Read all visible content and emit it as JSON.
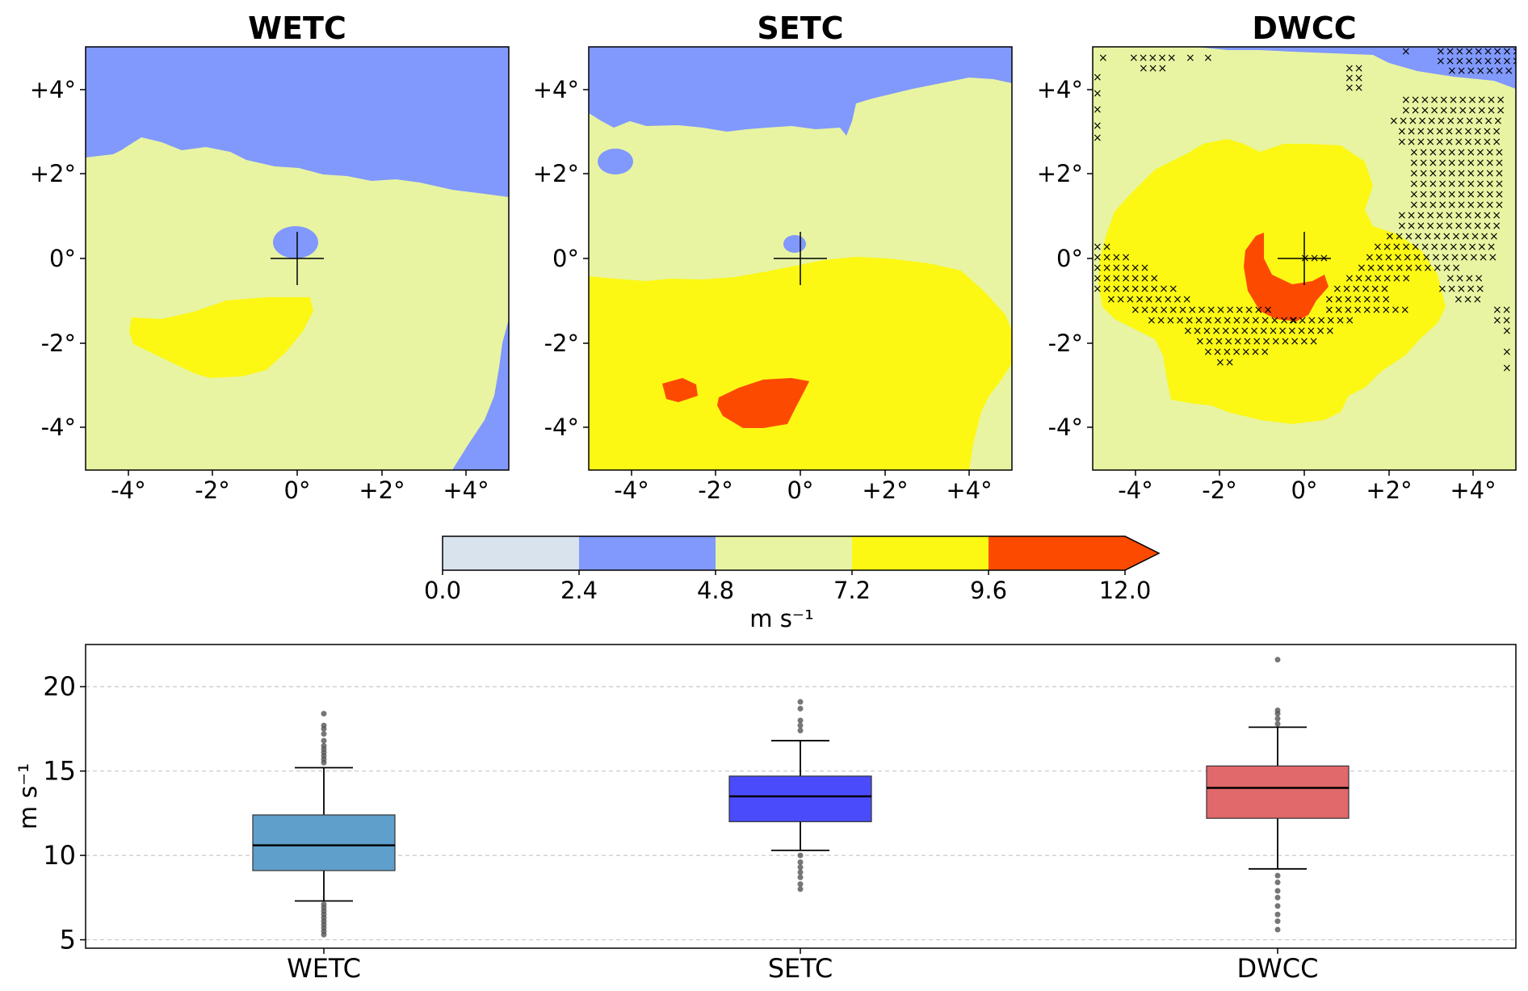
{
  "chart_data": [
    {
      "type": "heatmap",
      "panel_titles": [
        "WETC",
        "SETC",
        "DWCC"
      ],
      "x_ticks": [
        "-4°",
        "-2°",
        "0°",
        "+2°",
        "+4°"
      ],
      "y_ticks": [
        "+4°",
        "+2°",
        "0°",
        "-2°",
        "-4°"
      ],
      "x_range_deg": [
        -5,
        5
      ],
      "y_range_deg": [
        -5,
        5
      ],
      "marker": "cross at 0°, 0° (storm centre)",
      "stippling": "x markers on DWCC panel",
      "colorbar": {
        "boundaries": [
          "0.0",
          "2.4",
          "4.8",
          "7.2",
          "9.6",
          "12.0"
        ],
        "colors": [
          "#d8e3ee",
          "#8198fd",
          "#e8f4a2",
          "#fcf814",
          "#fd4a01"
        ],
        "extend": "max",
        "label": "m s⁻¹"
      }
    },
    {
      "type": "box",
      "categories": [
        "WETC",
        "SETC",
        "DWCC"
      ],
      "ylabel": "m s⁻¹",
      "yticks": [
        "5",
        "10",
        "15",
        "20"
      ],
      "ylim": [
        4.5,
        22.5
      ],
      "grid": "horizontal dashed",
      "colors": [
        "#5e9fcc",
        "#4a4cfc",
        "#e1686b"
      ],
      "series": [
        {
          "whisker_low": 7.3,
          "q1": 9.1,
          "median": 10.6,
          "q3": 12.4,
          "whisker_high": 15.2,
          "outliers": [
            5.3,
            5.5,
            5.7,
            5.9,
            6.1,
            6.3,
            6.5,
            6.7,
            6.9,
            7.1,
            15.5,
            15.7,
            15.9,
            16.1,
            16.3,
            16.5,
            16.8,
            17.2,
            17.5,
            17.7,
            18.4
          ]
        },
        {
          "whisker_low": 10.3,
          "q1": 12.0,
          "median": 13.5,
          "q3": 14.7,
          "whisker_high": 16.8,
          "outliers": [
            8.0,
            8.3,
            8.7,
            9.0,
            9.3,
            9.6,
            10.0,
            17.4,
            17.7,
            18.0,
            18.7,
            19.1
          ]
        },
        {
          "whisker_low": 9.2,
          "q1": 12.2,
          "median": 14.0,
          "q3": 15.3,
          "whisker_high": 17.6,
          "outliers": [
            5.6,
            6.1,
            6.5,
            7.0,
            7.5,
            7.9,
            8.4,
            8.8,
            17.8,
            18.1,
            18.4,
            18.6,
            21.6
          ]
        }
      ]
    }
  ]
}
